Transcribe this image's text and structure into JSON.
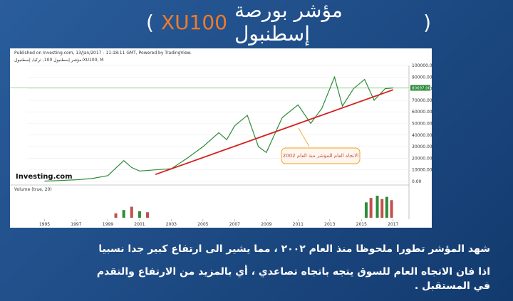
{
  "slide": {
    "title_open": "(",
    "title_code": "XU100",
    "title_text": "مؤشر بورصة إسطنبول",
    "title_close": ")",
    "paragraphs": [
      "شهد المؤشر تطورا ملحوظا منذ العام ٢٠٠٢ ، مما يشير الى ارتفاع كبير جدا نسبيا",
      "اذا فان الاتجاه العام للسوق يتجه باتجاه تصاعدي ، أي بالمزيد من الارتفاع والتقدم في المستقبل ."
    ]
  },
  "chart_data": {
    "type": "line",
    "title": "Published on Investing.com, 13/Jan/2017 - 11:18:11 GMT, Powered by TradingView.",
    "subtitle": "مؤشر إسطنبول 100, تركيا, إسطنبول:XU100, M",
    "logo": "Investing.com",
    "annotation": "الاتجاه العام للمؤشر منذ العام 2002",
    "xlim": [
      1993.9,
      2018
    ],
    "xticks": [
      1995,
      1997,
      1999,
      2001,
      2003,
      2005,
      2007,
      2009,
      2011,
      2013,
      2015,
      2017
    ],
    "ylim": [
      0,
      100000
    ],
    "yticks": [
      {
        "value": 0,
        "label": "0.00"
      },
      {
        "value": 10000,
        "label": "10000.00"
      },
      {
        "value": 20000,
        "label": "20000.00"
      },
      {
        "value": 30000,
        "label": "30000.00"
      },
      {
        "value": 40000,
        "label": "40000.00"
      },
      {
        "value": 50000,
        "label": "50000.00"
      },
      {
        "value": 60000,
        "label": "60000.00"
      },
      {
        "value": 70000,
        "label": "70000.00"
      },
      {
        "value": 80000,
        "label": "80000.00"
      },
      {
        "value": 90000,
        "label": "90000.00"
      },
      {
        "value": 100000,
        "label": "100000.00"
      }
    ],
    "last_price": {
      "value": 80697,
      "label": "80697.00"
    },
    "series": [
      {
        "name": "XU100",
        "color": "#2e8b3a",
        "x": [
          1995,
          1996,
          1997,
          1998,
          1999,
          2000,
          2000.5,
          2001,
          2002,
          2003,
          2004,
          2005,
          2006,
          2006.5,
          2007,
          2007.8,
          2008.5,
          2009,
          2010,
          2011,
          2011.8,
          2012.5,
          2013.3,
          2013.8,
          2014.5,
          2015.2,
          2015.8,
          2016.5,
          2017
        ],
        "values": [
          300,
          800,
          1500,
          2500,
          5000,
          18000,
          12000,
          9000,
          10000,
          11000,
          20000,
          30000,
          42000,
          36000,
          48000,
          57000,
          30000,
          25000,
          55000,
          66000,
          50000,
          63000,
          90000,
          65000,
          80000,
          88000,
          70000,
          80000,
          80697
        ]
      },
      {
        "name": "Trend",
        "color": "#d62020",
        "x": [
          2002,
          2017
        ],
        "values": [
          6000,
          79000
        ]
      }
    ],
    "volume": {
      "label": "Volume (true, 20)",
      "color": "#c0504d",
      "ylim": [
        0,
        110
      ],
      "x": [
        1999.5,
        2000,
        2000.5,
        2001,
        2001.5,
        2015.3,
        2015.6,
        2016,
        2016.3,
        2016.6,
        2016.9
      ],
      "values": [
        20,
        35,
        50,
        30,
        25,
        70,
        90,
        100,
        85,
        95,
        80
      ]
    }
  }
}
